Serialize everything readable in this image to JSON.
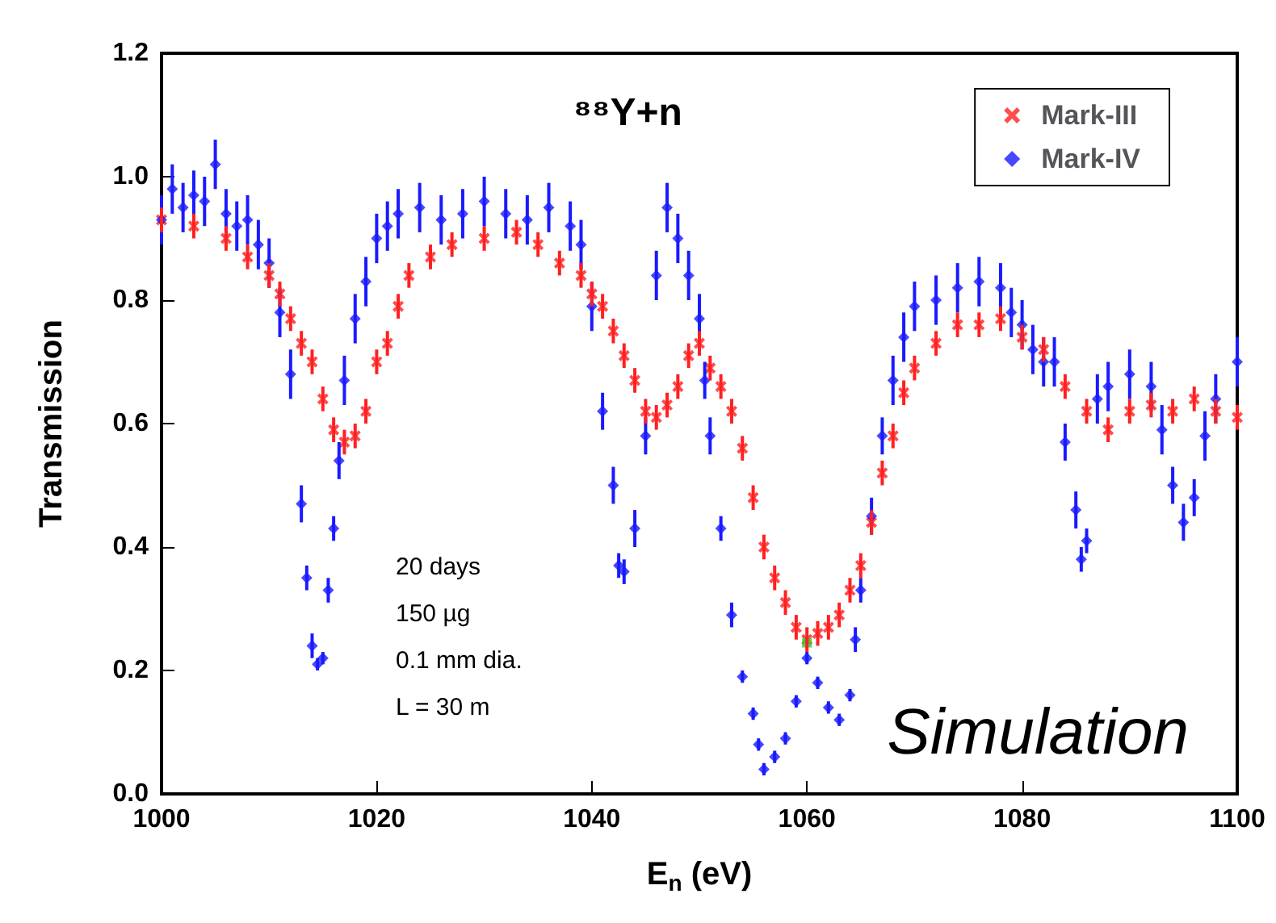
{
  "chart_data": {
    "type": "scatter",
    "title": "⁸⁸Y+n",
    "xlabel": "E$_{n}$ (eV)",
    "ylabel": "Transmission",
    "xlim": [
      1000,
      1100
    ],
    "xticks": [
      1000,
      1020,
      1040,
      1060,
      1080,
      1100
    ],
    "ylim": [
      0,
      1.2
    ],
    "yticks": [
      {
        "value": 0,
        "label": "0.0"
      },
      {
        "value": 0.2,
        "label": "0.2"
      },
      {
        "value": 0.4,
        "label": "0.4"
      },
      {
        "value": 0.6,
        "label": "0.6"
      },
      {
        "value": 0.8,
        "label": "0.8"
      },
      {
        "value": 1.0,
        "label": "1.0"
      },
      {
        "value": 1.2,
        "label": "1.2"
      }
    ],
    "grid": false,
    "legend": "top right",
    "annotations": [
      "20 days",
      "150 µg",
      "0.1 mm dia.",
      "L = 30 m",
      "Simulation"
    ],
    "series": [
      {
        "name": "Mark-III",
        "color": "#ff2020",
        "marker": "cross",
        "x": [
          1000,
          1003,
          1006,
          1008,
          1010,
          1011,
          1012,
          1013,
          1014,
          1015,
          1016,
          1017,
          1018,
          1019,
          1020,
          1021,
          1022,
          1023,
          1025,
          1027,
          1030,
          1033,
          1035,
          1037,
          1039,
          1040,
          1041,
          1042,
          1043,
          1044,
          1045,
          1046,
          1047,
          1048,
          1049,
          1050,
          1051,
          1052,
          1053,
          1054,
          1055,
          1056,
          1057,
          1058,
          1059,
          1060,
          1061,
          1062,
          1063,
          1064,
          1065,
          1066,
          1067,
          1068,
          1069,
          1070,
          1072,
          1074,
          1076,
          1078,
          1080,
          1082,
          1084,
          1086,
          1088,
          1090,
          1092,
          1094,
          1096,
          1098,
          1100
        ],
        "values": [
          0.93,
          0.92,
          0.9,
          0.87,
          0.84,
          0.81,
          0.77,
          0.73,
          0.7,
          0.64,
          0.59,
          0.57,
          0.58,
          0.62,
          0.7,
          0.73,
          0.79,
          0.84,
          0.87,
          0.89,
          0.9,
          0.91,
          0.89,
          0.86,
          0.84,
          0.81,
          0.79,
          0.75,
          0.71,
          0.67,
          0.62,
          0.61,
          0.63,
          0.66,
          0.71,
          0.73,
          0.69,
          0.66,
          0.62,
          0.56,
          0.48,
          0.4,
          0.35,
          0.31,
          0.27,
          0.25,
          0.26,
          0.27,
          0.29,
          0.33,
          0.37,
          0.44,
          0.52,
          0.58,
          0.65,
          0.69,
          0.73,
          0.76,
          0.76,
          0.77,
          0.74,
          0.72,
          0.66,
          0.62,
          0.59,
          0.62,
          0.63,
          0.62,
          0.64,
          0.62,
          0.61
        ],
        "errors": [
          0.02,
          0.02,
          0.02,
          0.02,
          0.02,
          0.02,
          0.02,
          0.02,
          0.02,
          0.02,
          0.02,
          0.02,
          0.02,
          0.02,
          0.02,
          0.02,
          0.02,
          0.02,
          0.02,
          0.02,
          0.02,
          0.02,
          0.02,
          0.02,
          0.02,
          0.02,
          0.02,
          0.02,
          0.02,
          0.02,
          0.02,
          0.02,
          0.02,
          0.02,
          0.02,
          0.02,
          0.02,
          0.02,
          0.02,
          0.02,
          0.02,
          0.02,
          0.02,
          0.02,
          0.02,
          0.02,
          0.02,
          0.02,
          0.02,
          0.02,
          0.02,
          0.02,
          0.02,
          0.02,
          0.02,
          0.02,
          0.02,
          0.02,
          0.02,
          0.02,
          0.02,
          0.02,
          0.02,
          0.02,
          0.02,
          0.02,
          0.02,
          0.02,
          0.02,
          0.02,
          0.02
        ]
      },
      {
        "name": "Mark-IV",
        "color": "#1a1aff",
        "marker": "diamond",
        "x": [
          1000,
          1001,
          1002,
          1003,
          1004,
          1005,
          1006,
          1007,
          1008,
          1009,
          1010,
          1011,
          1012,
          1013,
          1013.5,
          1014,
          1014.5,
          1015,
          1015.5,
          1016,
          1016.5,
          1017,
          1018,
          1019,
          1020,
          1021,
          1022,
          1024,
          1026,
          1028,
          1030,
          1032,
          1034,
          1036,
          1038,
          1039,
          1040,
          1041,
          1042,
          1042.5,
          1043,
          1044,
          1045,
          1046,
          1047,
          1048,
          1049,
          1050,
          1050.5,
          1051,
          1052,
          1053,
          1054,
          1055,
          1055.5,
          1056,
          1057,
          1058,
          1059,
          1060,
          1061,
          1062,
          1063,
          1064,
          1064.5,
          1065,
          1066,
          1067,
          1068,
          1069,
          1070,
          1072,
          1074,
          1076,
          1078,
          1079,
          1080,
          1081,
          1082,
          1083,
          1084,
          1085,
          1085.5,
          1086,
          1087,
          1088,
          1090,
          1092,
          1093,
          1094,
          1095,
          1096,
          1097,
          1098,
          1100
        ],
        "values": [
          0.93,
          0.98,
          0.95,
          0.97,
          0.96,
          1.02,
          0.94,
          0.92,
          0.93,
          0.89,
          0.86,
          0.78,
          0.68,
          0.47,
          0.35,
          0.24,
          0.21,
          0.22,
          0.33,
          0.43,
          0.54,
          0.67,
          0.77,
          0.83,
          0.9,
          0.92,
          0.94,
          0.95,
          0.93,
          0.94,
          0.96,
          0.94,
          0.93,
          0.95,
          0.92,
          0.89,
          0.79,
          0.62,
          0.5,
          0.37,
          0.36,
          0.43,
          0.58,
          0.84,
          0.95,
          0.9,
          0.84,
          0.77,
          0.67,
          0.58,
          0.43,
          0.29,
          0.19,
          0.13,
          0.08,
          0.04,
          0.06,
          0.09,
          0.15,
          0.22,
          0.18,
          0.14,
          0.12,
          0.16,
          0.25,
          0.33,
          0.45,
          0.58,
          0.67,
          0.74,
          0.79,
          0.8,
          0.82,
          0.83,
          0.82,
          0.78,
          0.76,
          0.72,
          0.7,
          0.7,
          0.57,
          0.46,
          0.38,
          0.41,
          0.64,
          0.66,
          0.68,
          0.66,
          0.59,
          0.5,
          0.44,
          0.48,
          0.58,
          0.64,
          0.7
        ],
        "errors": [
          0.04,
          0.04,
          0.04,
          0.04,
          0.04,
          0.04,
          0.04,
          0.04,
          0.04,
          0.04,
          0.04,
          0.04,
          0.04,
          0.03,
          0.02,
          0.02,
          0.01,
          0.01,
          0.02,
          0.02,
          0.03,
          0.04,
          0.04,
          0.04,
          0.04,
          0.04,
          0.04,
          0.04,
          0.04,
          0.04,
          0.04,
          0.04,
          0.04,
          0.04,
          0.04,
          0.04,
          0.04,
          0.03,
          0.03,
          0.02,
          0.02,
          0.03,
          0.03,
          0.04,
          0.04,
          0.04,
          0.04,
          0.04,
          0.03,
          0.03,
          0.02,
          0.02,
          0.01,
          0.01,
          0.01,
          0.01,
          0.01,
          0.01,
          0.01,
          0.01,
          0.01,
          0.01,
          0.01,
          0.01,
          0.02,
          0.02,
          0.03,
          0.03,
          0.04,
          0.04,
          0.04,
          0.04,
          0.04,
          0.04,
          0.04,
          0.04,
          0.04,
          0.04,
          0.04,
          0.04,
          0.03,
          0.03,
          0.02,
          0.02,
          0.04,
          0.04,
          0.04,
          0.04,
          0.04,
          0.03,
          0.03,
          0.03,
          0.04,
          0.04,
          0.04
        ]
      },
      {
        "color": "#33cc33",
        "marker": "square",
        "x": [
          1060
        ],
        "values": [
          0.245
        ]
      }
    ]
  }
}
